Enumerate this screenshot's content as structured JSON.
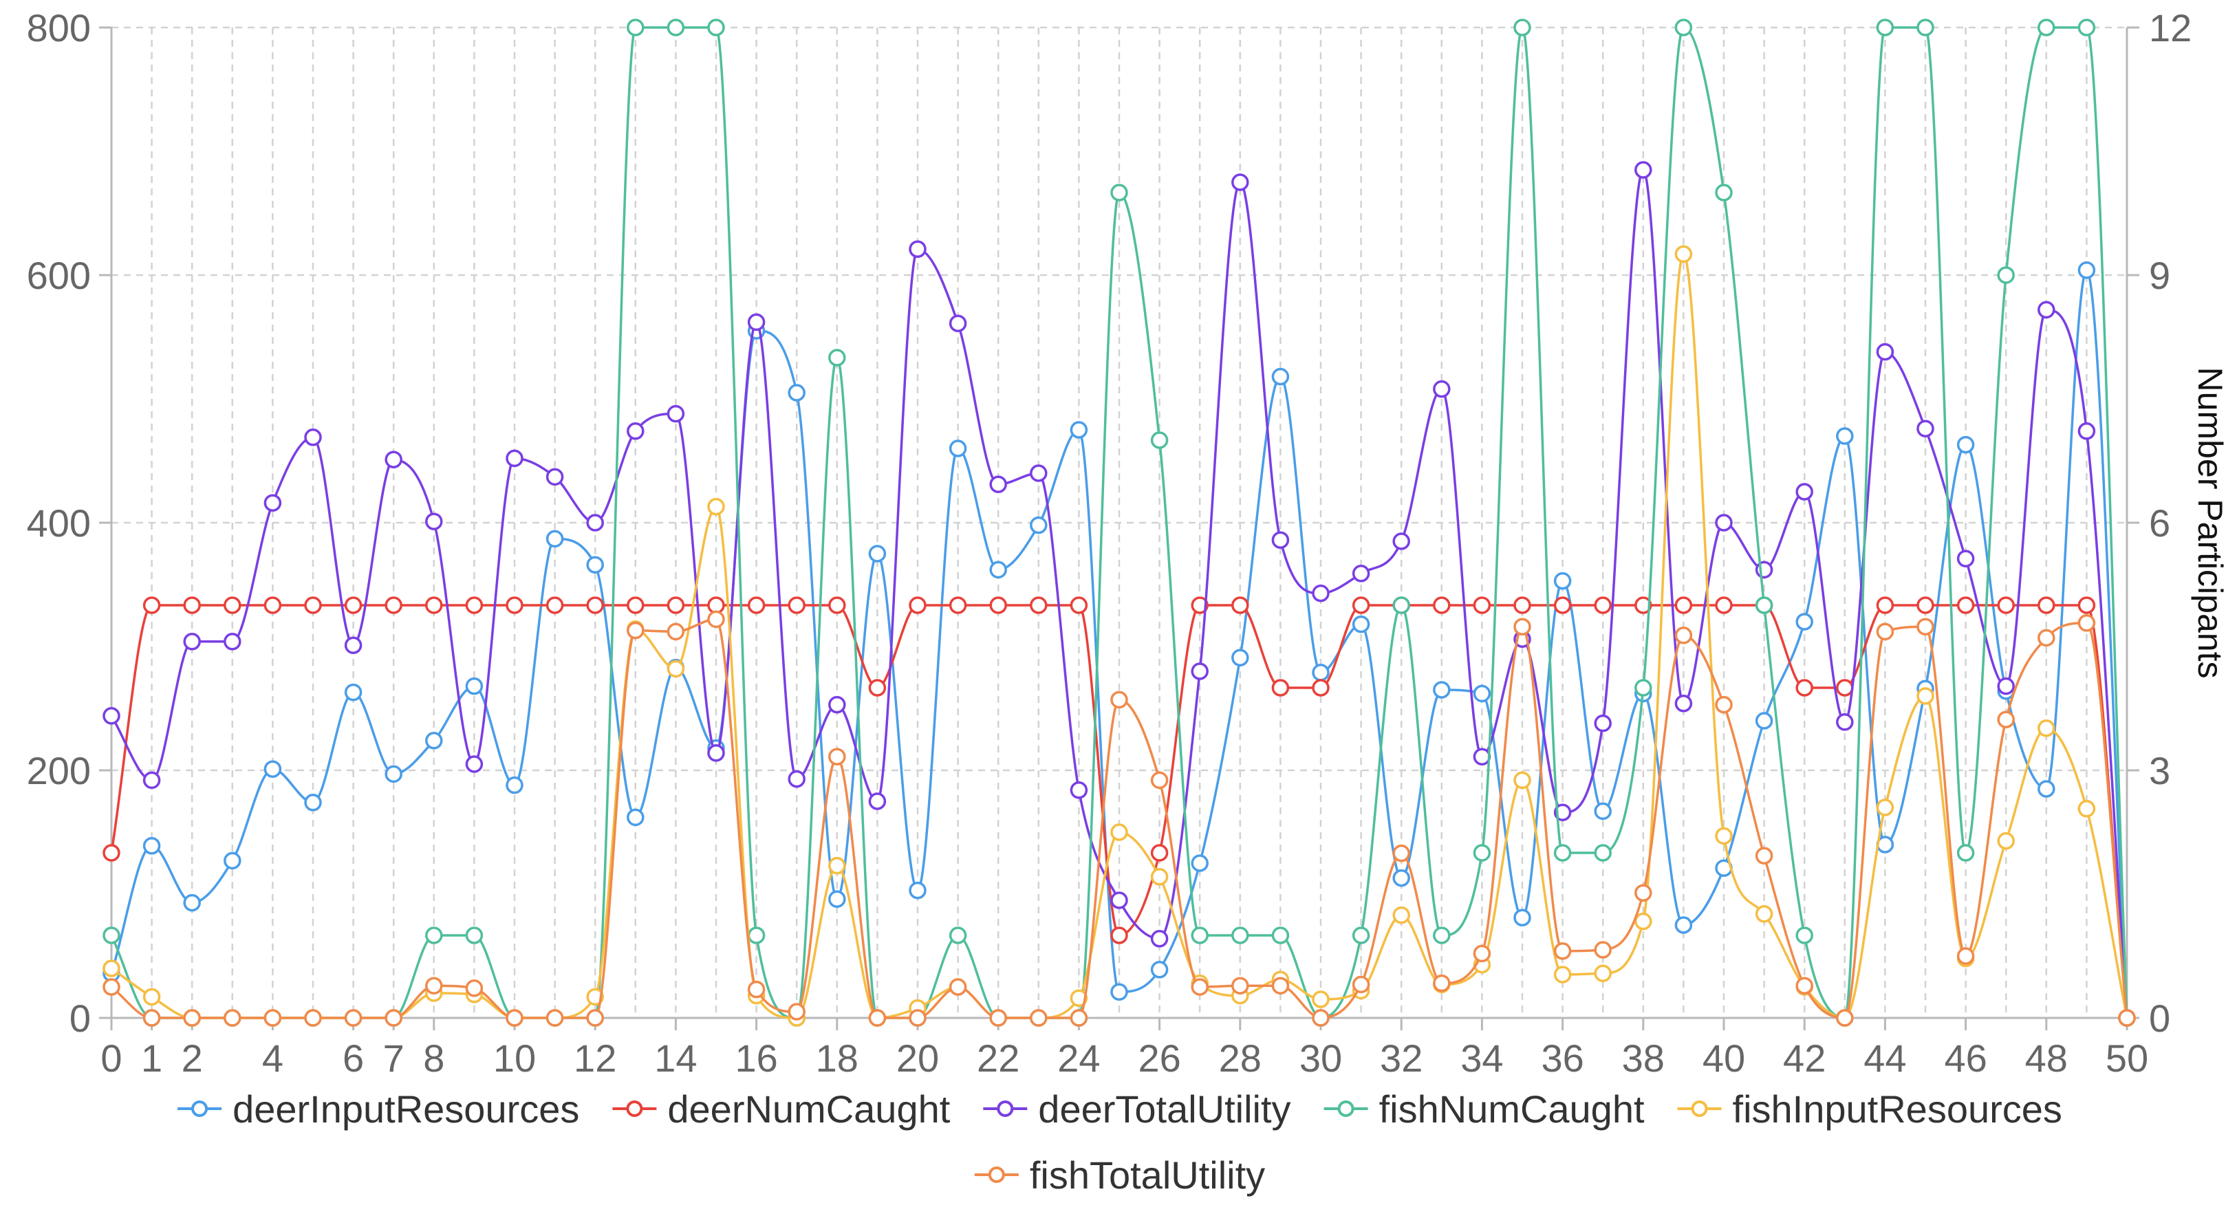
{
  "chart_data": {
    "type": "line",
    "title": "",
    "xlabel": "",
    "ylabel_left": "",
    "ylabel_right": "Number Participants",
    "x": [
      0,
      1,
      2,
      3,
      4,
      5,
      6,
      7,
      8,
      9,
      10,
      11,
      12,
      13,
      14,
      15,
      16,
      17,
      18,
      19,
      20,
      21,
      22,
      23,
      24,
      25,
      26,
      27,
      28,
      29,
      30,
      31,
      32,
      33,
      34,
      35,
      36,
      37,
      38,
      39,
      40,
      41,
      42,
      43,
      44,
      45,
      46,
      47,
      48,
      49,
      50
    ],
    "x_tick_labels": [
      "0",
      "1",
      "2",
      "4",
      "6",
      "7",
      "8",
      "10",
      "12",
      "14",
      "16",
      "18",
      "20",
      "22",
      "24",
      "26",
      "28",
      "30",
      "32",
      "34",
      "36",
      "38",
      "40",
      "42",
      "44",
      "46",
      "48",
      "50"
    ],
    "x_ticks": [
      0,
      1,
      2,
      4,
      6,
      7,
      8,
      10,
      12,
      14,
      16,
      18,
      20,
      22,
      24,
      26,
      28,
      30,
      32,
      34,
      36,
      38,
      40,
      42,
      44,
      46,
      48,
      50
    ],
    "xlim": [
      0,
      50
    ],
    "ylim_left": [
      0,
      800
    ],
    "y_left_ticks": [
      0,
      200,
      400,
      600,
      800
    ],
    "ylim_right": [
      0,
      12
    ],
    "y_right_ticks": [
      0,
      3,
      6,
      9,
      12
    ],
    "grid": true,
    "grid_style": "dashed",
    "legend_position": "bottom",
    "series": [
      {
        "name": "deerInputResources",
        "axis": "left",
        "color": "#4a9de8",
        "values": [
          36,
          139,
          93,
          127,
          201,
          174,
          263,
          197,
          224,
          268,
          188,
          387,
          366,
          162,
          283,
          218,
          555,
          505,
          96,
          375,
          103,
          460,
          362,
          398,
          475,
          21,
          39,
          125,
          291,
          518,
          279,
          318,
          113,
          265,
          262,
          81,
          353,
          167,
          262,
          75,
          121,
          240,
          320,
          470,
          140,
          266,
          463,
          264,
          185,
          604,
          0
        ]
      },
      {
        "name": "deerNumCaught",
        "axis": "right",
        "color": "#e8413a",
        "values": [
          2,
          5,
          5,
          5,
          5,
          5,
          5,
          5,
          5,
          5,
          5,
          5,
          5,
          5,
          5,
          5,
          5,
          5,
          5,
          4,
          5,
          5,
          5,
          5,
          5,
          1,
          2,
          5,
          5,
          4,
          4,
          5,
          5,
          5,
          5,
          5,
          5,
          5,
          5,
          5,
          5,
          5,
          4,
          4,
          5,
          5,
          5,
          5,
          5,
          5,
          0
        ]
      },
      {
        "name": "deerTotalUtility",
        "axis": "left",
        "color": "#7a3ee3",
        "values": [
          244,
          192,
          304,
          304,
          416,
          469,
          301,
          451,
          401,
          205,
          452,
          437,
          400,
          474,
          488,
          214,
          562,
          193,
          253,
          175,
          621,
          561,
          431,
          440,
          184,
          95,
          64,
          280,
          675,
          386,
          343,
          359,
          385,
          508,
          211,
          306,
          166,
          238,
          685,
          254,
          400,
          362,
          425,
          239,
          538,
          476,
          371,
          268,
          572,
          474,
          0
        ]
      },
      {
        "name": "fishNumCaught",
        "axis": "right",
        "color": "#4fbe9c",
        "values": [
          1,
          0,
          0,
          0,
          0,
          0,
          0,
          0,
          1,
          1,
          0,
          0,
          0,
          12,
          12,
          12,
          1,
          0,
          8,
          0,
          0,
          1,
          0,
          0,
          0,
          10,
          7,
          1,
          1,
          1,
          0,
          1,
          5,
          1,
          2,
          12,
          2,
          2,
          4,
          12,
          10,
          5,
          1,
          0,
          12,
          12,
          2,
          9,
          12,
          12,
          0
        ]
      },
      {
        "name": "fishInputResources",
        "axis": "left",
        "color": "#f5bd42",
        "values": [
          40,
          17,
          0,
          0,
          0,
          0,
          0,
          0,
          20,
          19,
          0,
          0,
          17,
          314,
          282,
          413,
          18,
          0,
          123,
          0,
          8,
          25,
          0,
          0,
          16,
          150,
          114,
          28,
          18,
          31,
          15,
          22,
          83,
          27,
          43,
          192,
          35,
          36,
          78,
          617,
          147,
          84,
          25,
          0,
          170,
          260,
          48,
          143,
          234,
          169,
          0
        ]
      },
      {
        "name": "fishTotalUtility",
        "axis": "left",
        "color": "#f08a4b",
        "values": [
          25,
          0,
          0,
          0,
          0,
          0,
          0,
          0,
          26,
          24,
          0,
          0,
          0,
          313,
          312,
          322,
          23,
          5,
          211,
          0,
          0,
          25,
          0,
          0,
          0,
          257,
          192,
          25,
          26,
          26,
          0,
          27,
          133,
          28,
          52,
          316,
          54,
          55,
          101,
          309,
          253,
          131,
          26,
          0,
          312,
          316,
          50,
          241,
          307,
          319,
          0
        ]
      }
    ]
  }
}
